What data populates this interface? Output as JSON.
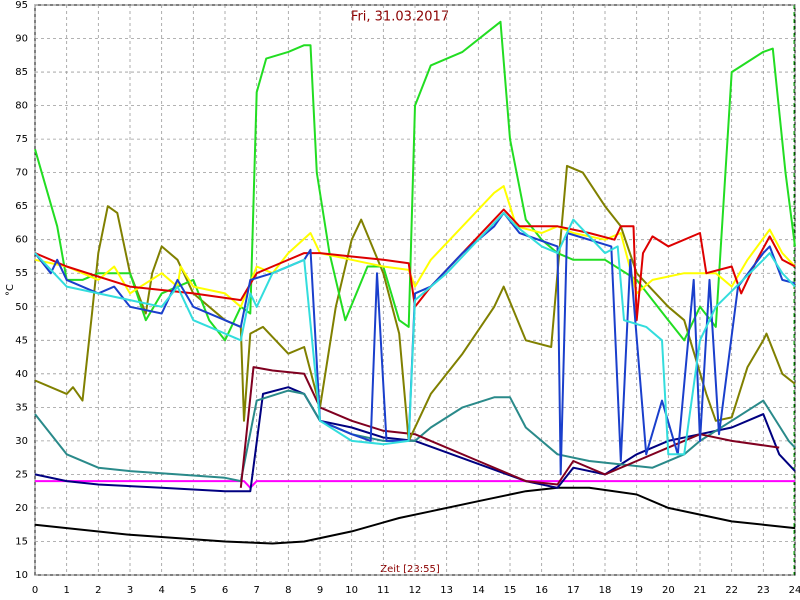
{
  "chart_data": {
    "type": "line",
    "title": "Fri, 31.03.2017",
    "xlabel": "Zeit [23:55]",
    "ylabel": "°C",
    "xlim": [
      0,
      24
    ],
    "xticks": [
      0,
      1,
      2,
      3,
      4,
      5,
      6,
      7,
      8,
      9,
      10,
      11,
      12,
      13,
      14,
      15,
      16,
      17,
      18,
      19,
      20,
      21,
      22,
      23,
      24
    ],
    "ylim": [
      10,
      95
    ],
    "yticks": [
      10,
      15,
      20,
      25,
      30,
      35,
      40,
      45,
      50,
      55,
      60,
      65,
      70,
      75,
      80,
      85,
      90,
      95
    ],
    "grid": true,
    "series": [
      {
        "color": "#000000",
        "x": [
          0,
          3,
          6,
          7.5,
          8.5,
          10,
          11.5,
          12.5,
          14,
          15.5,
          16.5,
          17.5,
          19,
          20,
          21,
          22,
          23,
          24
        ],
        "values": [
          17.5,
          16,
          15,
          14.7,
          15,
          16.5,
          18.5,
          19.5,
          21,
          22.5,
          23,
          23,
          22,
          20,
          19,
          18,
          17.5,
          17
        ]
      },
      {
        "color": "#ff00ff",
        "x": [
          0,
          6.6,
          6.8,
          7,
          24
        ],
        "values": [
          24,
          24,
          23,
          24,
          24
        ]
      },
      {
        "color": "#000080",
        "x": [
          0,
          1,
          2,
          4,
          6,
          6.8,
          7.2,
          8,
          8.5,
          9,
          10,
          11,
          12,
          15.5,
          16.5,
          17,
          18,
          19,
          20,
          21,
          22,
          23,
          23.5,
          24
        ],
        "values": [
          25,
          24,
          23.5,
          23,
          22.5,
          22.5,
          37,
          38,
          37,
          33,
          32,
          30.5,
          30,
          24,
          23,
          26,
          25,
          28,
          30,
          31,
          32,
          34,
          28,
          25.5
        ]
      },
      {
        "color": "#2a8a8a",
        "x": [
          0,
          1,
          2,
          3,
          4.5,
          6,
          6.5,
          7,
          8,
          8.5,
          9,
          10,
          11,
          12,
          12.5,
          13.5,
          14.5,
          15,
          15.5,
          16.5,
          17.5,
          18.5,
          19.5,
          20.5,
          21,
          22,
          23,
          23.8,
          24
        ],
        "values": [
          34,
          28,
          26,
          25.5,
          25,
          24.5,
          24,
          36,
          37.5,
          37,
          33,
          31,
          30,
          30,
          32,
          35,
          36.5,
          36.5,
          32,
          28,
          27,
          26.5,
          26,
          28,
          30,
          33,
          36,
          30,
          29
        ]
      },
      {
        "color": "#800020",
        "x": [
          6.5,
          6.9,
          7.5,
          8.5,
          9,
          10,
          11,
          12,
          12.5,
          14,
          15.5,
          16.5,
          17,
          18,
          19,
          20,
          21,
          22,
          23.5
        ],
        "values": [
          23,
          41,
          40.5,
          40,
          35,
          33,
          31.5,
          31,
          30,
          27,
          24,
          23.5,
          27,
          25,
          27,
          29,
          31,
          30,
          29
        ]
      },
      {
        "color": "#808000",
        "x": [
          0,
          1,
          1.2,
          1.5,
          1.8,
          2,
          2.3,
          2.6,
          3,
          3.5,
          3.7,
          4,
          4.5,
          5,
          6,
          6.5,
          6.6,
          6.8,
          7.2,
          8,
          8.5,
          9,
          9.5,
          10,
          10.3,
          11,
          11.5,
          11.8,
          12.5,
          13.5,
          14.5,
          14.8,
          15.5,
          16.3,
          16.5,
          16.8,
          17.3,
          18,
          18.5,
          19,
          20,
          20.5,
          21.2,
          21.5,
          22,
          22.5,
          23,
          23.1,
          23.6,
          24
        ],
        "values": [
          39,
          37,
          38,
          36,
          49,
          58,
          65,
          64,
          55,
          49,
          55,
          59,
          57,
          52,
          48,
          47,
          33,
          46,
          47,
          43,
          44,
          35,
          50,
          60,
          63,
          55,
          46,
          30,
          37,
          43,
          50,
          53,
          45,
          44,
          55,
          71,
          70,
          65,
          62,
          55,
          50,
          48,
          37,
          33,
          33.5,
          41,
          45,
          46,
          40,
          38.5
        ]
      },
      {
        "color": "#22dd22",
        "x": [
          0,
          0.7,
          1,
          1.5,
          2,
          3,
          3.5,
          4,
          5,
          5.5,
          6,
          6.5,
          6.8,
          7,
          7.3,
          8,
          8.5,
          8.7,
          8.9,
          9.3,
          9.8,
          10.5,
          11,
          11.5,
          11.8,
          12,
          12.5,
          13.5,
          14.3,
          14.7,
          15,
          15.5,
          16,
          16.5,
          17,
          18,
          19,
          20,
          20.5,
          21,
          21.5,
          22,
          23,
          23.3,
          23.7,
          24
        ],
        "values": [
          73.5,
          62,
          54,
          54,
          55,
          55,
          48,
          52,
          54,
          48,
          45,
          50,
          49,
          82,
          87,
          88,
          89,
          89,
          70,
          58,
          48,
          56,
          56,
          48,
          47,
          80,
          86,
          88,
          91,
          92.5,
          75,
          63,
          60,
          58,
          57,
          57,
          54,
          48,
          45,
          50,
          47,
          85,
          88,
          88.5,
          70,
          59
        ]
      },
      {
        "color": "#ffff00",
        "x": [
          0,
          1,
          2,
          2.5,
          3,
          4,
          4.5,
          4.6,
          5,
          6,
          6.5,
          7,
          7.5,
          8,
          8.7,
          9,
          10,
          11,
          11.8,
          12,
          12.5,
          13.5,
          14.5,
          14.8,
          15.2,
          16,
          16.5,
          17,
          18,
          18.5,
          19,
          19.5,
          20.5,
          21.5,
          22,
          22.5,
          23.2,
          23.6,
          24
        ],
        "values": [
          57,
          56,
          54,
          56,
          52,
          55,
          53,
          56,
          53,
          52,
          50,
          56,
          55,
          58,
          61,
          58,
          57,
          56,
          55.5,
          53,
          57,
          62,
          67,
          68,
          62,
          61,
          62,
          61,
          60,
          61,
          52,
          54,
          55,
          55,
          53,
          57,
          61.5,
          58,
          56
        ]
      },
      {
        "color": "#dd0000",
        "x": [
          0,
          1,
          2,
          3,
          5,
          6.5,
          7,
          7.5,
          8.5,
          9,
          10,
          11,
          11.8,
          12,
          12.5,
          13.5,
          14.5,
          14.8,
          15.3,
          16.5,
          17.5,
          18.3,
          18.5,
          18.9,
          19,
          19.2,
          19.5,
          20,
          21,
          21.2,
          22,
          22.3,
          22.8,
          23.2,
          23.6,
          24
        ],
        "values": [
          58,
          56,
          54.5,
          53,
          52,
          51,
          55,
          56,
          58,
          58,
          57.5,
          57,
          56.5,
          50,
          53,
          58,
          63,
          64.5,
          62,
          62,
          61,
          60,
          62,
          62,
          48,
          58,
          60.5,
          59,
          61,
          55,
          56,
          52,
          57,
          60.5,
          57,
          56
        ]
      },
      {
        "color": "#1a3fcc",
        "x": [
          0,
          0.5,
          0.7,
          1,
          2,
          2.5,
          3,
          4,
          4.5,
          5,
          6,
          6.5,
          6.8,
          7.5,
          8.5,
          8.7,
          9,
          10,
          10.6,
          10.8,
          11.1,
          11.8,
          12,
          12.5,
          13.5,
          14.5,
          14.8,
          15.3,
          16.5,
          16.6,
          16.8,
          18.2,
          18.5,
          18.8,
          19.3,
          19.8,
          20.3,
          20.8,
          21,
          21.3,
          21.6,
          22.2,
          23,
          23.2,
          23.6,
          24
        ],
        "values": [
          58,
          55,
          57,
          54,
          52,
          53,
          50,
          49,
          54,
          50,
          48,
          47,
          54,
          55,
          57,
          58.5,
          33,
          31,
          30,
          55,
          30,
          30,
          52,
          53,
          58,
          62,
          64,
          61,
          59,
          25,
          61,
          59,
          27,
          57,
          28,
          36,
          28,
          54,
          30,
          54,
          31,
          53,
          58,
          59,
          54,
          53.5
        ]
      },
      {
        "color": "#33dddd",
        "x": [
          0,
          1,
          2,
          3,
          4,
          4.5,
          5,
          6,
          6.5,
          6.8,
          7,
          7.5,
          8.5,
          9,
          10,
          11,
          11.8,
          12,
          13,
          14,
          14.8,
          15.2,
          16,
          16.5,
          17,
          18,
          18.4,
          18.6,
          19.3,
          19.8,
          20,
          20.5,
          21,
          21.5,
          23,
          23.2,
          23.6,
          24
        ],
        "values": [
          58,
          53,
          52,
          51,
          50,
          53,
          48,
          46,
          45,
          52,
          50,
          55,
          57,
          33,
          30,
          29.5,
          30,
          51,
          55,
          60,
          64,
          62,
          59,
          58,
          63,
          58,
          59,
          48,
          47,
          45,
          28,
          28,
          45,
          50,
          57,
          58,
          55,
          53
        ]
      }
    ]
  }
}
